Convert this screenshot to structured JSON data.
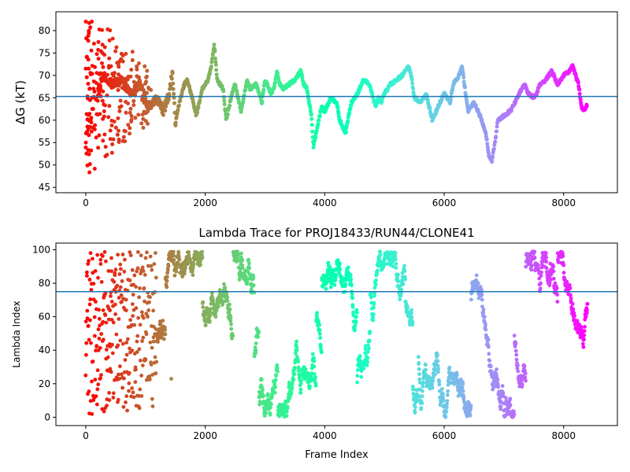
{
  "figure": {
    "background": "#ffffff",
    "axis_color": "#000000",
    "hline_color": "#1f77b4",
    "colormap": "rainbow"
  },
  "chart_data": [
    {
      "type": "scatter",
      "title": "",
      "xlabel": "",
      "ylabel": "ΔG (kT)",
      "xlim": [
        -500,
        8900
      ],
      "ylim": [
        43.8,
        84.2
      ],
      "xticks": [
        0,
        2000,
        4000,
        6000,
        8000
      ],
      "xtick_labels": [
        "0",
        "2000",
        "4000",
        "6000",
        "8000"
      ],
      "yticks": [
        45,
        50,
        55,
        60,
        65,
        70,
        75,
        80
      ],
      "ytick_labels": [
        "45",
        "50",
        "55",
        "60",
        "65",
        "70",
        "75",
        "80"
      ],
      "hline": 65.3,
      "color_by": "frame_index_reversed_rainbow",
      "trace_anchors": {
        "x": [
          200,
          300,
          450,
          600,
          750,
          900,
          1050,
          1200,
          1300,
          1400,
          1450,
          1500,
          1550,
          1650,
          1700,
          1800,
          1850,
          1950,
          2050,
          2100,
          2150,
          2200,
          2300,
          2350,
          2450,
          2500,
          2600,
          2700,
          2750,
          2850,
          2950,
          3000,
          3100,
          3150,
          3200,
          3250,
          3300,
          3400,
          3500,
          3600,
          3650,
          3700,
          3780,
          3810,
          3900,
          3950,
          4000,
          4100,
          4200,
          4250,
          4350,
          4400,
          4450,
          4550,
          4650,
          4750,
          4850,
          4900,
          4950,
          5000,
          5100,
          5200,
          5300,
          5400,
          5450,
          5500,
          5600,
          5700,
          5800,
          5900,
          6000,
          6100,
          6150,
          6250,
          6300,
          6350,
          6400,
          6500,
          6600,
          6700,
          6750,
          6800,
          6850,
          6900,
          7000,
          7100,
          7150,
          7300,
          7350,
          7400,
          7500,
          7550,
          7600,
          7700,
          7800,
          7900,
          8000,
          8100,
          8150,
          8200,
          8250,
          8300,
          8350,
          8390
        ],
        "y": [
          66,
          70,
          68,
          69,
          66,
          68,
          63,
          65,
          62,
          66,
          71,
          59,
          63,
          68,
          69,
          64,
          61,
          67,
          69,
          72,
          77,
          69,
          67,
          60,
          66,
          68,
          62,
          69,
          67,
          68,
          64,
          69,
          66,
          67,
          71,
          68,
          67,
          68,
          69,
          71,
          68,
          67,
          61,
          54,
          60,
          63,
          62,
          65,
          64,
          60,
          57,
          61,
          64,
          66,
          69,
          68,
          63,
          65,
          64,
          66,
          68,
          69,
          70,
          72,
          70,
          65,
          64,
          66,
          60,
          63,
          66,
          64,
          68,
          70,
          72,
          67,
          62,
          64,
          61,
          57,
          52,
          51,
          55,
          60,
          61,
          62,
          63,
          67,
          68,
          66,
          65,
          66,
          68,
          69,
          71,
          68,
          70,
          71,
          72,
          70,
          68,
          63,
          62,
          63.5
        ]
      },
      "early_scatter": {
        "x_range": [
          0,
          1100
        ],
        "y_range": [
          45,
          82
        ]
      }
    },
    {
      "type": "scatter",
      "title": "Lambda Trace for PROJ18433/RUN44/CLONE41",
      "xlabel": "Frame Index",
      "ylabel": "Lambda Index",
      "xlim": [
        -500,
        8900
      ],
      "ylim": [
        -5,
        104
      ],
      "xticks": [
        0,
        2000,
        4000,
        6000,
        8000
      ],
      "xtick_labels": [
        "0",
        "2000",
        "4000",
        "6000",
        "8000"
      ],
      "yticks": [
        0,
        20,
        40,
        60,
        80,
        100
      ],
      "ytick_labels": [
        "0",
        "20",
        "40",
        "60",
        "80",
        "100"
      ],
      "hline": 75,
      "color_by": "frame_index_reversed_rainbow",
      "lambda_range": [
        0,
        99
      ],
      "frame_range": [
        0,
        8400
      ]
    }
  ]
}
